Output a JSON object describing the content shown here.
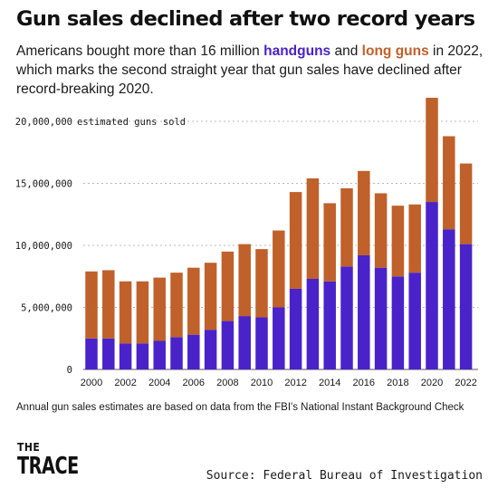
{
  "header": {
    "title": "Gun sales declined after two record years",
    "subtitle_part1": "Americans bought more than 16 million ",
    "subtitle_handguns": "handguns",
    "subtitle_and": " and ",
    "subtitle_longguns": "long guns",
    "subtitle_part2": " in 2022, which marks the second straight year that gun sales have declined after record-breaking 2020."
  },
  "footnote": "Annual gun sales estimates are based on data from the FBI's National Instant Background Check",
  "logo": {
    "the": "THE",
    "trace": "TRACE"
  },
  "source": "Source: Federal Bureau of Investigation",
  "colors": {
    "handguns": "#4a22c9",
    "long_guns": "#c0602a",
    "grid": "#b8b8b8",
    "text": "#1a1a1a"
  },
  "chart_data": {
    "type": "bar",
    "stacked": true,
    "categories": [
      "2000",
      "2001",
      "2002",
      "2003",
      "2004",
      "2005",
      "2006",
      "2007",
      "2008",
      "2009",
      "2010",
      "2011",
      "2012",
      "2013",
      "2014",
      "2015",
      "2016",
      "2017",
      "2018",
      "2019",
      "2020",
      "2021",
      "2022"
    ],
    "x_tick_labels": [
      "2000",
      "2002",
      "2004",
      "2006",
      "2008",
      "2010",
      "2012",
      "2014",
      "2016",
      "2018",
      "2020",
      "2022"
    ],
    "series": [
      {
        "name": "handguns",
        "color": "#4a22c9",
        "values": [
          2500000,
          2500000,
          2100000,
          2100000,
          2300000,
          2600000,
          2800000,
          3200000,
          3900000,
          4300000,
          4200000,
          5000000,
          6500000,
          7300000,
          7100000,
          8300000,
          9200000,
          8200000,
          7500000,
          7800000,
          13500000,
          11300000,
          10100000
        ]
      },
      {
        "name": "long guns",
        "color": "#c0602a",
        "values": [
          5400000,
          5500000,
          5000000,
          5000000,
          5100000,
          5200000,
          5400000,
          5400000,
          5600000,
          5800000,
          5500000,
          6200000,
          7800000,
          8100000,
          6300000,
          6300000,
          6800000,
          6000000,
          5700000,
          5500000,
          8400000,
          7500000,
          6500000
        ]
      }
    ],
    "ylim": [
      0,
      20000000
    ],
    "y_ticks": [
      0,
      5000000,
      10000000,
      15000000,
      20000000
    ],
    "y_tick_labels": [
      "0",
      "5,000,000",
      "10,000,000",
      "15,000,000",
      "20,000,000"
    ],
    "y_top_annotation": "estimated guns sold",
    "grid": true
  }
}
